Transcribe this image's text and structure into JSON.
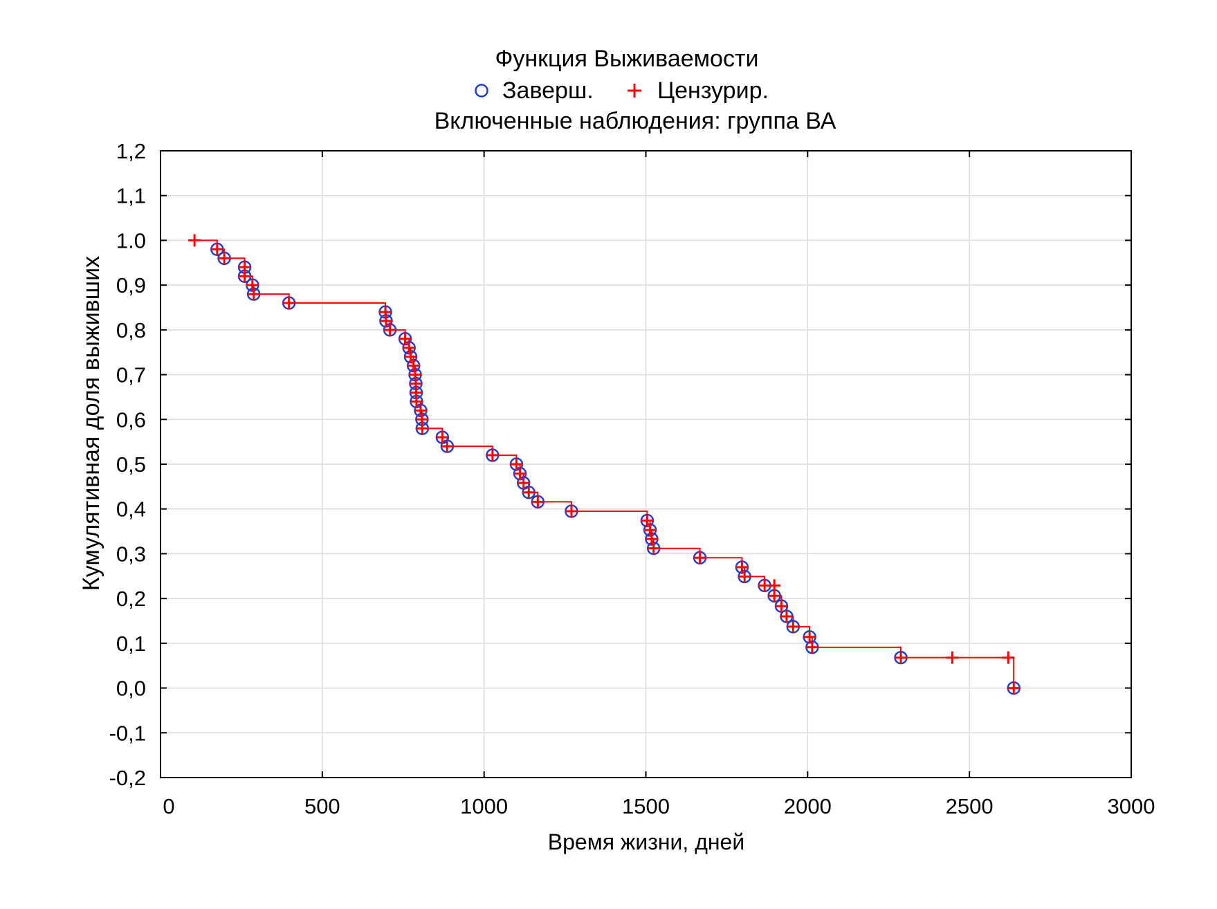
{
  "chart_data": {
    "type": "line",
    "title": "Функция Выживаемости",
    "subtitle": "Включенные наблюдения: группа ВА",
    "xlabel": "Время жизни, дней",
    "ylabel": "Кумулятивная доля выживших",
    "xlim": [
      0,
      3000
    ],
    "ylim": [
      -0.2,
      1.2
    ],
    "xticks": [
      0,
      500,
      1000,
      1500,
      2000,
      2500,
      3000
    ],
    "xtick_labels": [
      "0",
      "500",
      "1000",
      "1500",
      "2000",
      "2500",
      "3000"
    ],
    "yticks": [
      -0.2,
      -0.1,
      0.0,
      0.1,
      0.2,
      0.3,
      0.4,
      0.5,
      0.6,
      0.7,
      0.8,
      0.9,
      1.0,
      1.1,
      1.2
    ],
    "ytick_labels": [
      "-0,2",
      "-0,1",
      "0,0",
      "0,1",
      "0,2",
      "0,3",
      "0,4",
      "0,5",
      "0,6",
      "0,7",
      "0,8",
      "0,9",
      "1.0",
      "1,1",
      "1,2"
    ],
    "grid": true,
    "legend_position": "top-center",
    "legend": [
      {
        "name": "Заверш.",
        "marker": "circle",
        "color": "#1f3fd8"
      },
      {
        "name": "Цензурир.",
        "marker": "plus",
        "color": "#ff0000"
      }
    ],
    "step_curve": {
      "color": "#ff0000",
      "points": [
        [
          105,
          1.0
        ],
        [
          175,
          1.0
        ],
        [
          175,
          0.98
        ],
        [
          197,
          0.98
        ],
        [
          197,
          0.96
        ],
        [
          260,
          0.96
        ],
        [
          260,
          0.94
        ],
        [
          260,
          0.92
        ],
        [
          284,
          0.92
        ],
        [
          284,
          0.9
        ],
        [
          288,
          0.9
        ],
        [
          288,
          0.88
        ],
        [
          397,
          0.88
        ],
        [
          397,
          0.86
        ],
        [
          695,
          0.86
        ],
        [
          695,
          0.84
        ],
        [
          697,
          0.84
        ],
        [
          697,
          0.82
        ],
        [
          709,
          0.82
        ],
        [
          709,
          0.8
        ],
        [
          756,
          0.8
        ],
        [
          756,
          0.78
        ],
        [
          768,
          0.78
        ],
        [
          768,
          0.76
        ],
        [
          773,
          0.76
        ],
        [
          773,
          0.74
        ],
        [
          782,
          0.74
        ],
        [
          782,
          0.72
        ],
        [
          787,
          0.72
        ],
        [
          787,
          0.7
        ],
        [
          789,
          0.7
        ],
        [
          789,
          0.68
        ],
        [
          790,
          0.68
        ],
        [
          790,
          0.66
        ],
        [
          791,
          0.66
        ],
        [
          791,
          0.64
        ],
        [
          804,
          0.64
        ],
        [
          804,
          0.62
        ],
        [
          808,
          0.62
        ],
        [
          808,
          0.6
        ],
        [
          809,
          0.6
        ],
        [
          809,
          0.58
        ],
        [
          871,
          0.58
        ],
        [
          871,
          0.56
        ],
        [
          886,
          0.56
        ],
        [
          886,
          0.54
        ],
        [
          1026,
          0.54
        ],
        [
          1026,
          0.52
        ],
        [
          1100,
          0.52
        ],
        [
          1100,
          0.5
        ],
        [
          1111,
          0.5
        ],
        [
          1111,
          0.479
        ],
        [
          1122,
          0.479
        ],
        [
          1122,
          0.458
        ],
        [
          1138,
          0.458
        ],
        [
          1138,
          0.437
        ],
        [
          1166,
          0.437
        ],
        [
          1166,
          0.416
        ],
        [
          1270,
          0.416
        ],
        [
          1270,
          0.395
        ],
        [
          1504,
          0.395
        ],
        [
          1504,
          0.374
        ],
        [
          1513,
          0.374
        ],
        [
          1513,
          0.353
        ],
        [
          1518,
          0.353
        ],
        [
          1518,
          0.333
        ],
        [
          1524,
          0.333
        ],
        [
          1524,
          0.312
        ],
        [
          1667,
          0.312
        ],
        [
          1667,
          0.291
        ],
        [
          1797,
          0.291
        ],
        [
          1797,
          0.27
        ],
        [
          1805,
          0.27
        ],
        [
          1805,
          0.249
        ],
        [
          1867,
          0.249
        ],
        [
          1867,
          0.229
        ],
        [
          1897,
          0.229
        ],
        [
          1897,
          0.206
        ],
        [
          1919,
          0.206
        ],
        [
          1919,
          0.183
        ],
        [
          1935,
          0.183
        ],
        [
          1935,
          0.16
        ],
        [
          1955,
          0.16
        ],
        [
          1955,
          0.137
        ],
        [
          2006,
          0.137
        ],
        [
          2006,
          0.114
        ],
        [
          2014,
          0.114
        ],
        [
          2014,
          0.091
        ],
        [
          2288,
          0.091
        ],
        [
          2288,
          0.068
        ],
        [
          2637,
          0.068
        ],
        [
          2637,
          0.0
        ]
      ]
    },
    "completed": [
      [
        175,
        0.98
      ],
      [
        197,
        0.96
      ],
      [
        260,
        0.94
      ],
      [
        260,
        0.92
      ],
      [
        284,
        0.9
      ],
      [
        288,
        0.88
      ],
      [
        397,
        0.86
      ],
      [
        695,
        0.84
      ],
      [
        697,
        0.82
      ],
      [
        709,
        0.8
      ],
      [
        756,
        0.78
      ],
      [
        768,
        0.76
      ],
      [
        773,
        0.74
      ],
      [
        782,
        0.72
      ],
      [
        787,
        0.7
      ],
      [
        789,
        0.68
      ],
      [
        790,
        0.66
      ],
      [
        791,
        0.64
      ],
      [
        804,
        0.62
      ],
      [
        808,
        0.6
      ],
      [
        809,
        0.58
      ],
      [
        871,
        0.56
      ],
      [
        886,
        0.54
      ],
      [
        1026,
        0.52
      ],
      [
        1100,
        0.5
      ],
      [
        1111,
        0.479
      ],
      [
        1122,
        0.458
      ],
      [
        1138,
        0.437
      ],
      [
        1166,
        0.416
      ],
      [
        1270,
        0.395
      ],
      [
        1504,
        0.374
      ],
      [
        1513,
        0.353
      ],
      [
        1518,
        0.333
      ],
      [
        1524,
        0.312
      ],
      [
        1667,
        0.291
      ],
      [
        1797,
        0.27
      ],
      [
        1805,
        0.249
      ],
      [
        1867,
        0.229
      ],
      [
        1897,
        0.206
      ],
      [
        1919,
        0.183
      ],
      [
        1935,
        0.16
      ],
      [
        1955,
        0.137
      ],
      [
        2006,
        0.114
      ],
      [
        2014,
        0.091
      ],
      [
        2288,
        0.068
      ],
      [
        2637,
        0.0
      ]
    ],
    "censored": [
      [
        105,
        1.0
      ],
      [
        175,
        0.98
      ],
      [
        197,
        0.96
      ],
      [
        260,
        0.94
      ],
      [
        260,
        0.92
      ],
      [
        284,
        0.9
      ],
      [
        288,
        0.88
      ],
      [
        397,
        0.86
      ],
      [
        695,
        0.84
      ],
      [
        697,
        0.82
      ],
      [
        709,
        0.8
      ],
      [
        756,
        0.78
      ],
      [
        768,
        0.76
      ],
      [
        773,
        0.74
      ],
      [
        782,
        0.72
      ],
      [
        787,
        0.7
      ],
      [
        789,
        0.68
      ],
      [
        790,
        0.66
      ],
      [
        791,
        0.64
      ],
      [
        804,
        0.62
      ],
      [
        808,
        0.6
      ],
      [
        809,
        0.58
      ],
      [
        871,
        0.56
      ],
      [
        886,
        0.54
      ],
      [
        1026,
        0.52
      ],
      [
        1100,
        0.5
      ],
      [
        1111,
        0.479
      ],
      [
        1122,
        0.458
      ],
      [
        1138,
        0.437
      ],
      [
        1166,
        0.416
      ],
      [
        1270,
        0.395
      ],
      [
        1504,
        0.374
      ],
      [
        1513,
        0.353
      ],
      [
        1518,
        0.333
      ],
      [
        1524,
        0.312
      ],
      [
        1667,
        0.291
      ],
      [
        1797,
        0.27
      ],
      [
        1805,
        0.249
      ],
      [
        1867,
        0.229
      ],
      [
        1897,
        0.229
      ],
      [
        1897,
        0.206
      ],
      [
        1919,
        0.183
      ],
      [
        1935,
        0.16
      ],
      [
        1955,
        0.137
      ],
      [
        2006,
        0.114
      ],
      [
        2014,
        0.091
      ],
      [
        2288,
        0.068
      ],
      [
        2447,
        0.068
      ],
      [
        2620,
        0.068
      ],
      [
        2637,
        0.0
      ]
    ]
  }
}
